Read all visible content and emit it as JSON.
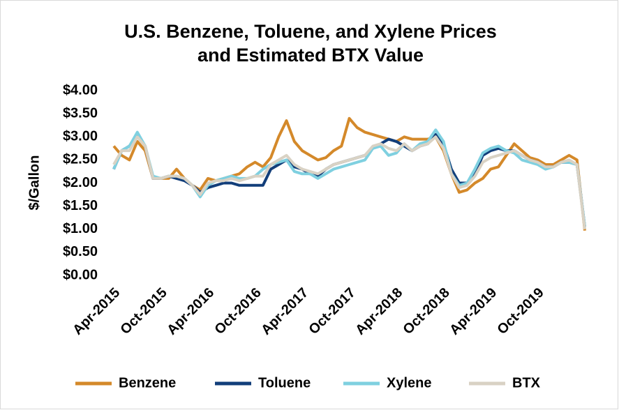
{
  "chart_data": {
    "type": "line",
    "title": [
      "U.S. Benzene, Toluene, and Xylene Prices",
      "and Estimated BTX Value"
    ],
    "y_label": "$/Gallon",
    "categories": [
      "Apr-2015",
      null,
      null,
      null,
      null,
      null,
      "Oct-2015",
      null,
      null,
      null,
      null,
      null,
      "Apr-2016",
      null,
      null,
      null,
      null,
      null,
      "Oct-2016",
      null,
      null,
      null,
      null,
      null,
      "Apr-2017",
      null,
      null,
      null,
      null,
      null,
      "Oct-2017",
      null,
      null,
      null,
      null,
      null,
      "Apr-2018",
      null,
      null,
      null,
      null,
      null,
      "Oct-2018",
      null,
      null,
      null,
      null,
      null,
      "Apr-2019",
      null,
      null,
      null,
      null,
      null,
      "Oct-2019",
      null,
      null,
      null,
      null,
      null,
      null
    ],
    "series": [
      {
        "name": "Benzene",
        "color": "#d4892a",
        "values": [
          2.8,
          2.6,
          2.5,
          2.9,
          2.7,
          2.1,
          2.1,
          2.1,
          2.3,
          2.1,
          1.95,
          1.85,
          2.1,
          2.05,
          2.1,
          2.15,
          2.2,
          2.35,
          2.45,
          2.35,
          2.55,
          3.0,
          3.35,
          2.9,
          2.7,
          2.6,
          2.5,
          2.55,
          2.7,
          2.8,
          3.4,
          3.2,
          3.1,
          3.05,
          3.0,
          2.95,
          2.9,
          3.0,
          2.95,
          2.95,
          2.95,
          3.0,
          2.7,
          2.2,
          1.8,
          1.85,
          2.0,
          2.1,
          2.3,
          2.35,
          2.6,
          2.85,
          2.7,
          2.55,
          2.5,
          2.4,
          2.4,
          2.5,
          2.6,
          2.5,
          0.97
        ]
      },
      {
        "name": "Toluene",
        "color": "#123e7a",
        "values": [
          2.3,
          2.7,
          2.8,
          3.05,
          2.8,
          2.1,
          2.1,
          2.15,
          2.1,
          2.05,
          1.95,
          1.8,
          1.9,
          1.95,
          2.0,
          2.0,
          1.95,
          1.95,
          1.95,
          1.95,
          2.3,
          2.4,
          2.5,
          2.35,
          2.3,
          2.2,
          2.15,
          2.3,
          2.4,
          2.45,
          2.5,
          2.55,
          2.6,
          2.75,
          2.85,
          2.95,
          2.9,
          2.8,
          2.7,
          2.8,
          2.85,
          3.05,
          2.85,
          2.3,
          2.0,
          2.0,
          2.2,
          2.6,
          2.7,
          2.75,
          2.7,
          2.7,
          2.6,
          2.5,
          2.45,
          2.35,
          2.35,
          2.45,
          2.45,
          2.4,
          1.05
        ]
      },
      {
        "name": "Xylene",
        "color": "#7fd0e0",
        "values": [
          2.3,
          2.7,
          2.8,
          3.1,
          2.8,
          2.15,
          2.1,
          2.15,
          2.15,
          2.1,
          1.95,
          1.7,
          1.95,
          2.05,
          2.1,
          2.15,
          2.1,
          2.1,
          2.15,
          2.3,
          2.4,
          2.45,
          2.5,
          2.25,
          2.2,
          2.2,
          2.1,
          2.2,
          2.3,
          2.35,
          2.4,
          2.45,
          2.5,
          2.75,
          2.8,
          2.6,
          2.65,
          2.85,
          2.7,
          2.85,
          2.9,
          3.15,
          2.9,
          2.2,
          1.95,
          2.0,
          2.3,
          2.65,
          2.75,
          2.8,
          2.7,
          2.65,
          2.5,
          2.45,
          2.4,
          2.3,
          2.35,
          2.45,
          2.45,
          2.4,
          1.05
        ]
      },
      {
        "name": "BTX",
        "color": "#d9d2c4",
        "values": [
          2.4,
          2.7,
          2.7,
          3.0,
          2.8,
          2.1,
          2.1,
          2.15,
          2.15,
          2.1,
          1.95,
          1.75,
          2.0,
          2.05,
          2.05,
          2.1,
          2.05,
          2.1,
          2.15,
          2.15,
          2.4,
          2.5,
          2.6,
          2.4,
          2.3,
          2.25,
          2.2,
          2.3,
          2.4,
          2.45,
          2.5,
          2.55,
          2.6,
          2.8,
          2.85,
          2.75,
          2.7,
          2.85,
          2.7,
          2.8,
          2.85,
          3.0,
          2.75,
          2.2,
          1.9,
          1.95,
          2.15,
          2.45,
          2.55,
          2.6,
          2.65,
          2.7,
          2.6,
          2.5,
          2.45,
          2.35,
          2.35,
          2.45,
          2.5,
          2.4,
          1.0
        ]
      }
    ],
    "ylim": [
      0,
      4
    ],
    "yticks": [
      {
        "value": 0,
        "label": "$0.00"
      },
      {
        "value": 0.5,
        "label": "$0.50"
      },
      {
        "value": 1,
        "label": "$1.00"
      },
      {
        "value": 1.5,
        "label": "$1.50"
      },
      {
        "value": 2,
        "label": "$2.00"
      },
      {
        "value": 2.5,
        "label": "$2.50"
      },
      {
        "value": 3,
        "label": "$3.00"
      },
      {
        "value": 3.5,
        "label": "$3.50"
      },
      {
        "value": 4,
        "label": "$4.00"
      }
    ],
    "grid": false,
    "legend": "bottom"
  }
}
